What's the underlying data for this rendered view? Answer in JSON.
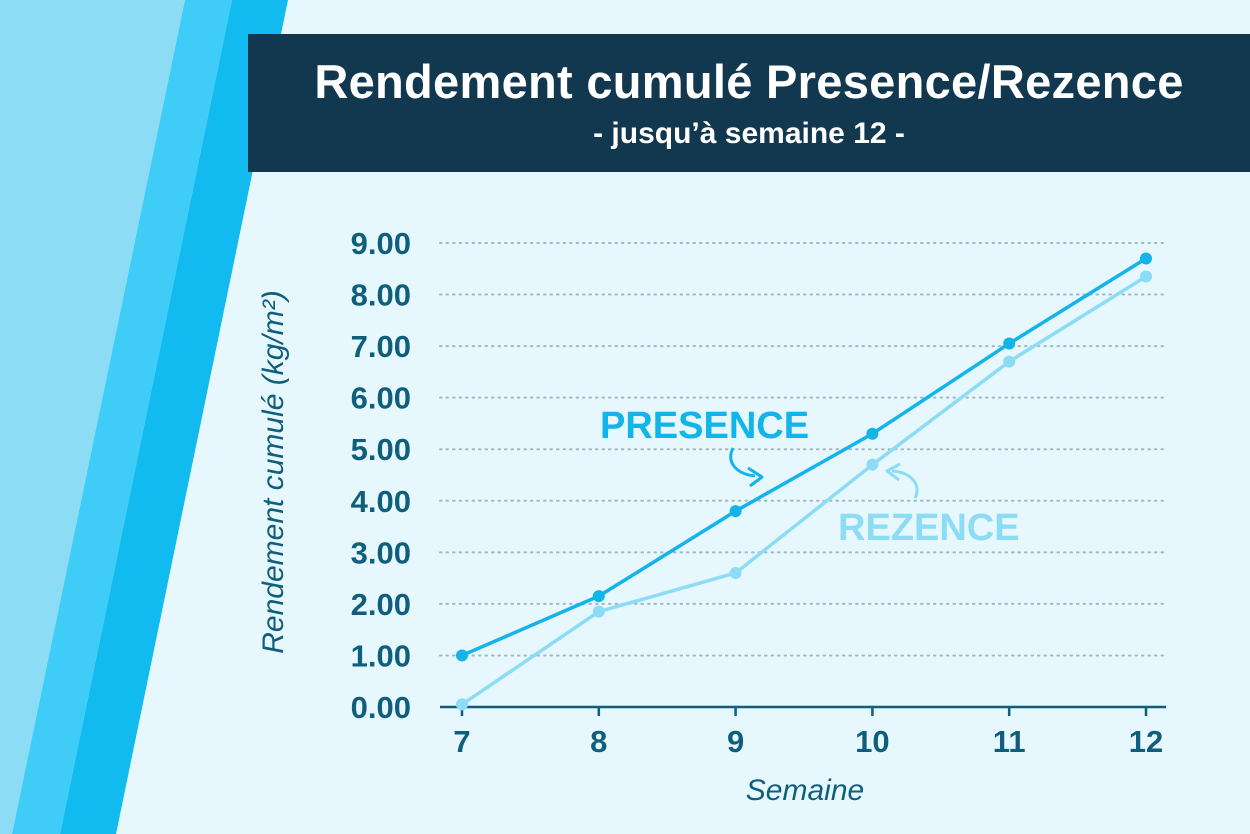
{
  "title": "Rendement cumulé Presence/Rezence",
  "subtitle": "- jusqu’à semaine 12 -",
  "colors": {
    "background": "#e6f7fd",
    "title_bar": "#12384f",
    "presence": "#12b4ea",
    "rezence": "#8ddcf5",
    "axis_text": "#0f5f7c",
    "grid": "#9fb9c4"
  },
  "chart_data": {
    "type": "line",
    "title": "Rendement cumulé Presence/Rezence",
    "subtitle": "- jusqu’à semaine 12 -",
    "xlabel": "Semaine",
    "ylabel": "Rendement cumulé (kg/m²)",
    "x": [
      7,
      8,
      9,
      10,
      11,
      12
    ],
    "x_tick_labels": [
      "7",
      "8",
      "9",
      "10",
      "11",
      "12"
    ],
    "ylim": [
      0,
      9
    ],
    "y_ticks": [
      0,
      1,
      2,
      3,
      4,
      5,
      6,
      7,
      8,
      9
    ],
    "y_tick_labels": [
      "0.00",
      "1.00",
      "2.00",
      "3.00",
      "4.00",
      "5.00",
      "6.00",
      "7.00",
      "8.00",
      "9.00"
    ],
    "grid": "horizontal dotted",
    "legend": "inline labels",
    "series": [
      {
        "name": "PRESENCE",
        "color": "#12b4ea",
        "values": [
          1.0,
          2.15,
          3.8,
          5.3,
          7.05,
          8.7
        ]
      },
      {
        "name": "REZENCE",
        "color": "#8ddcf5",
        "values": [
          0.05,
          1.85,
          2.6,
          4.7,
          6.7,
          8.35
        ]
      }
    ]
  }
}
